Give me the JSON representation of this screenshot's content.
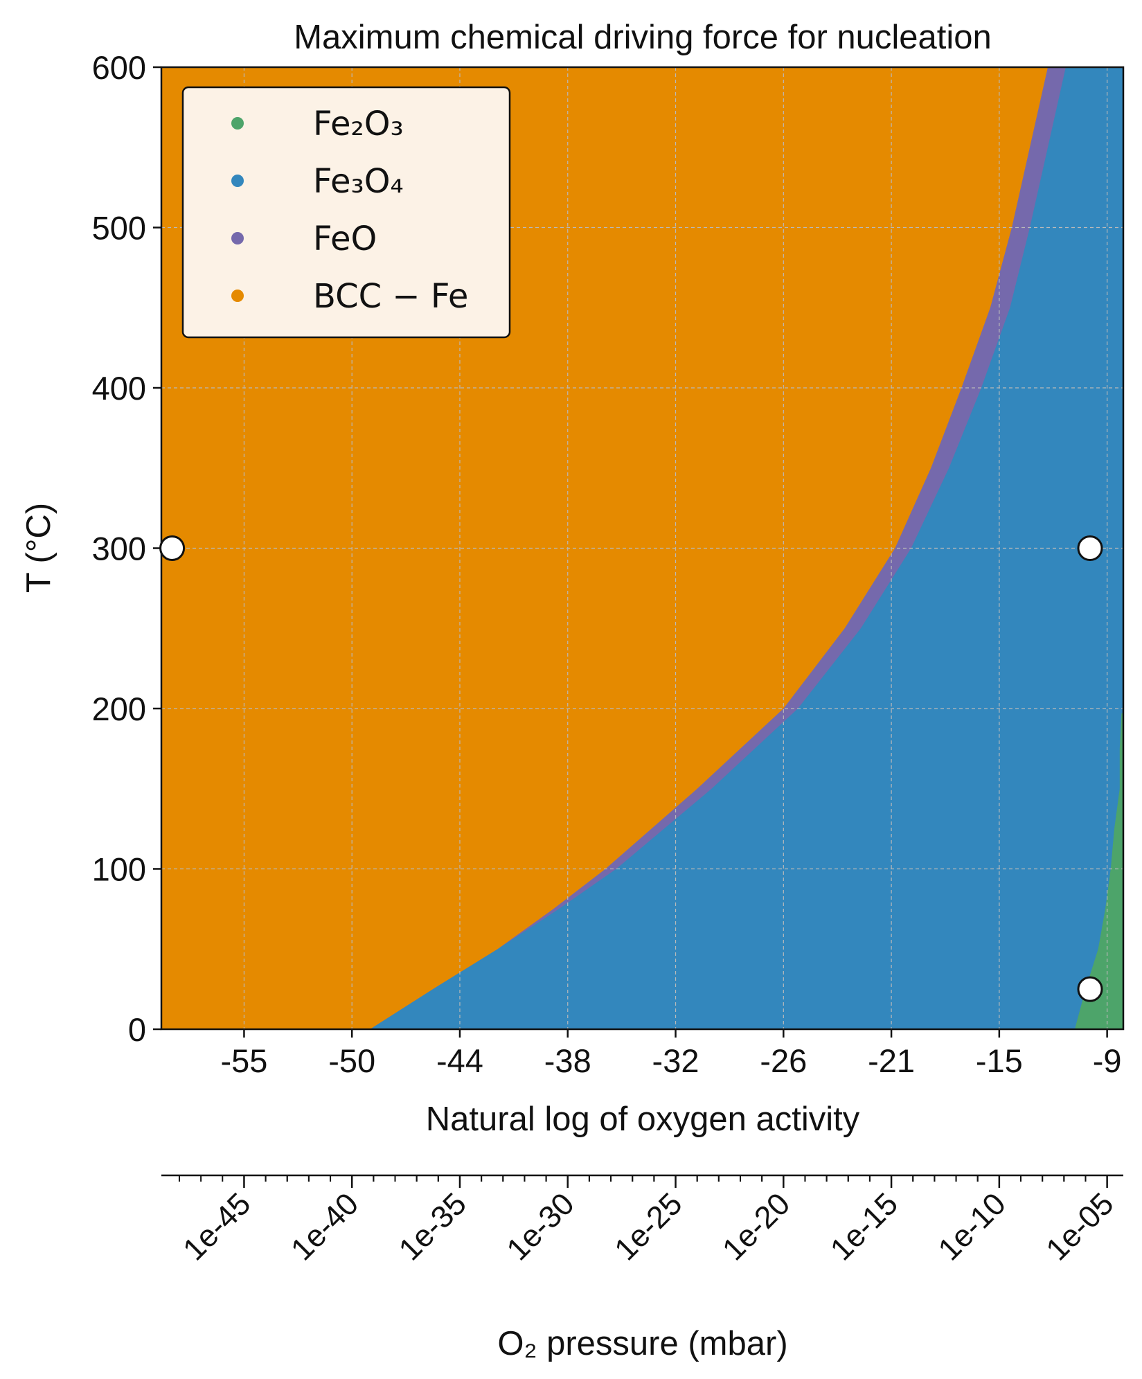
{
  "chart_data": {
    "type": "heatmap",
    "title": "Maximum chemical driving force for nucleation",
    "xlabel": "Natural log of oxygen activity",
    "ylabel": "T (°C)",
    "secondary_xlabel": "O₂ pressure (mbar)",
    "xlim": [
      -58.2,
      -4.7
    ],
    "ylim": [
      0,
      600
    ],
    "x_tick_labels": [
      "-55",
      "-50",
      "-44",
      "-38",
      "-32",
      "-26",
      "-21",
      "-15",
      "-9"
    ],
    "x_tick_values": [
      -53.6,
      -47.6,
      -41.6,
      -35.6,
      -29.6,
      -23.6,
      -17.6,
      -11.6,
      -5.6
    ],
    "y_ticks": [
      0,
      100,
      200,
      300,
      400,
      500,
      600
    ],
    "secondary_x_tick_labels": [
      "1e-45",
      "1e-40",
      "1e-35",
      "1e-30",
      "1e-25",
      "1e-20",
      "1e-15",
      "1e-10",
      "1e-05"
    ],
    "grid": true,
    "legend_position": "top-left",
    "series": [
      {
        "name": "Fe₂O₃",
        "color": "#4da46a"
      },
      {
        "name": "Fe₃O₄",
        "color": "#3387bd"
      },
      {
        "name": "FeO",
        "color": "#7569ac"
      },
      {
        "name": "BCC − Fe",
        "color": "#e58a00"
      }
    ],
    "boundaries": {
      "bcc_feo": [
        {
          "T": 0,
          "x": -46.6
        },
        {
          "T": 25,
          "x": -43.1
        },
        {
          "T": 50,
          "x": -39.5
        },
        {
          "T": 75,
          "x": -36.4
        },
        {
          "T": 100,
          "x": -33.5
        },
        {
          "T": 150,
          "x": -28.4
        },
        {
          "T": 200,
          "x": -23.6
        },
        {
          "T": 250,
          "x": -20.2
        },
        {
          "T": 300,
          "x": -17.4
        },
        {
          "T": 350,
          "x": -15.4
        },
        {
          "T": 400,
          "x": -13.7
        },
        {
          "T": 450,
          "x": -12.1
        },
        {
          "T": 500,
          "x": -10.9
        },
        {
          "T": 550,
          "x": -9.9
        },
        {
          "T": 600,
          "x": -8.9
        }
      ],
      "feo_fe3o4": [
        {
          "T": 0,
          "x": -46.6
        },
        {
          "T": 25,
          "x": -43.1
        },
        {
          "T": 50,
          "x": -39.5
        },
        {
          "T": 75,
          "x": -36.1
        },
        {
          "T": 100,
          "x": -32.9
        },
        {
          "T": 150,
          "x": -27.6
        },
        {
          "T": 200,
          "x": -22.8
        },
        {
          "T": 250,
          "x": -19.3
        },
        {
          "T": 300,
          "x": -16.5
        },
        {
          "T": 350,
          "x": -14.4
        },
        {
          "T": 400,
          "x": -12.6
        },
        {
          "T": 450,
          "x": -11.0
        },
        {
          "T": 500,
          "x": -9.9
        },
        {
          "T": 550,
          "x": -8.9
        },
        {
          "T": 600,
          "x": -7.9
        }
      ],
      "fe3o4_fe2o3": [
        {
          "T": 0,
          "x": -7.4
        },
        {
          "T": 25,
          "x": -6.8
        },
        {
          "T": 50,
          "x": -6.1
        },
        {
          "T": 75,
          "x": -5.7
        },
        {
          "T": 100,
          "x": -5.4
        },
        {
          "T": 125,
          "x": -5.2
        },
        {
          "T": 150,
          "x": -4.9
        },
        {
          "T": 175,
          "x": -4.9
        },
        {
          "T": 197,
          "x": -4.8
        }
      ]
    },
    "markers": [
      {
        "x": -57.6,
        "T": 300
      },
      {
        "x": -4.5,
        "T": 300
      },
      {
        "x": -3.7,
        "T": 25
      }
    ]
  }
}
